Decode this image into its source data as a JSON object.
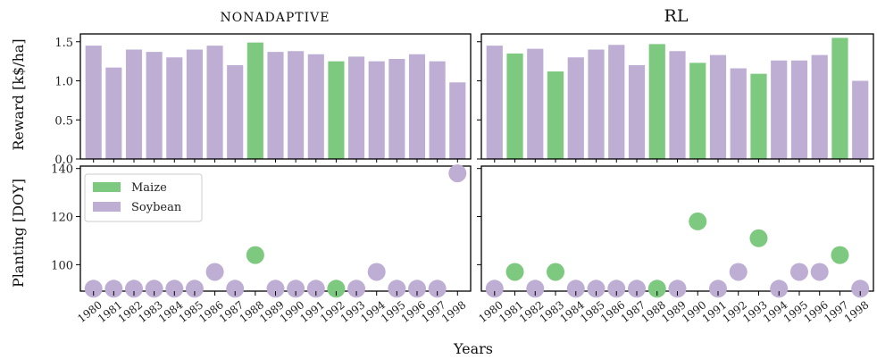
{
  "chart_data": {
    "type": "bar+scatter",
    "colors": {
      "Maize": "#7dc97f",
      "Soybean": "#beaed4"
    },
    "legend": {
      "entries": [
        "Maize",
        "Soybean"
      ],
      "placement": "upper-left of bottom-left panel"
    },
    "years": [
      "1980",
      "1981",
      "1982",
      "1983",
      "1984",
      "1985",
      "1986",
      "1987",
      "1988",
      "1989",
      "1990",
      "1991",
      "1992",
      "1993",
      "1994",
      "1995",
      "1996",
      "1997",
      "1998"
    ],
    "xlabel": "Years",
    "ylabel_top": "Reward [k$/ha]",
    "ylabel_bottom": "Planting [DOY]",
    "reward_ylim": [
      0,
      1.6
    ],
    "reward_ticks": [
      "0.0",
      "0.5",
      "1.0",
      "1.5"
    ],
    "planting_ylim": [
      89,
      141
    ],
    "planting_ticks": [
      "100",
      "120",
      "140"
    ],
    "panels": [
      {
        "title": "NONADAPTIVE",
        "reward": [
          1.45,
          1.17,
          1.4,
          1.37,
          1.3,
          1.4,
          1.45,
          1.2,
          1.49,
          1.37,
          1.38,
          1.34,
          1.25,
          1.31,
          1.25,
          1.28,
          1.34,
          1.25,
          0.98
        ],
        "crop": [
          "Soybean",
          "Soybean",
          "Soybean",
          "Soybean",
          "Soybean",
          "Soybean",
          "Soybean",
          "Soybean",
          "Maize",
          "Soybean",
          "Soybean",
          "Soybean",
          "Maize",
          "Soybean",
          "Soybean",
          "Soybean",
          "Soybean",
          "Soybean",
          "Soybean"
        ],
        "planting": [
          90,
          90,
          90,
          90,
          90,
          90,
          97,
          90,
          104,
          90,
          90,
          90,
          90,
          90,
          97,
          90,
          90,
          90,
          138
        ],
        "planting_crop": [
          "Soybean",
          "Soybean",
          "Soybean",
          "Soybean",
          "Soybean",
          "Soybean",
          "Soybean",
          "Soybean",
          "Maize",
          "Soybean",
          "Soybean",
          "Soybean",
          "Maize",
          "Soybean",
          "Soybean",
          "Soybean",
          "Soybean",
          "Soybean",
          "Soybean"
        ]
      },
      {
        "title": "RL",
        "reward": [
          1.45,
          1.35,
          1.41,
          1.12,
          1.3,
          1.4,
          1.46,
          1.2,
          1.47,
          1.38,
          1.23,
          1.33,
          1.16,
          1.09,
          1.26,
          1.26,
          1.33,
          1.55,
          1.0
        ],
        "crop": [
          "Soybean",
          "Maize",
          "Soybean",
          "Maize",
          "Soybean",
          "Soybean",
          "Soybean",
          "Soybean",
          "Maize",
          "Soybean",
          "Maize",
          "Soybean",
          "Soybean",
          "Maize",
          "Soybean",
          "Soybean",
          "Soybean",
          "Maize",
          "Soybean"
        ],
        "planting": [
          90,
          97,
          90,
          97,
          90,
          90,
          90,
          90,
          90,
          90,
          118,
          90,
          97,
          111,
          90,
          97,
          97,
          104,
          90
        ],
        "planting_crop": [
          "Soybean",
          "Maize",
          "Soybean",
          "Maize",
          "Soybean",
          "Soybean",
          "Soybean",
          "Soybean",
          "Maize",
          "Soybean",
          "Maize",
          "Soybean",
          "Soybean",
          "Maize",
          "Soybean",
          "Soybean",
          "Soybean",
          "Maize",
          "Soybean"
        ]
      }
    ]
  }
}
